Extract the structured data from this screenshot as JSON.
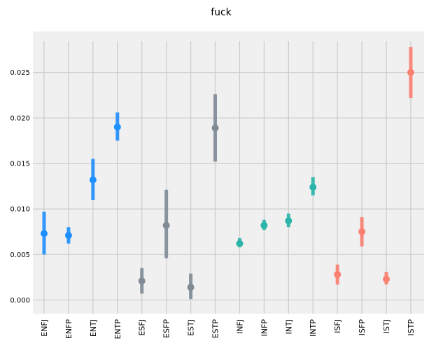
{
  "chart_data": {
    "type": "scatter",
    "title": "fuck",
    "xlabel": "",
    "ylabel": "",
    "ylim": [
      -0.0015,
      0.0295
    ],
    "grid": true,
    "legend": "none",
    "yticks": [
      "0.000",
      "0.005",
      "0.010",
      "0.015",
      "0.020",
      "0.025"
    ],
    "ytick_values": [
      0.0,
      0.005,
      0.01,
      0.015,
      0.02,
      0.025
    ],
    "categories": [
      "ENFJ",
      "ENFP",
      "ENTJ",
      "ENTP",
      "ESFJ",
      "ESFP",
      "ESTJ",
      "ESTP",
      "INFJ",
      "INFP",
      "INTJ",
      "INTP",
      "ISFJ",
      "ISFP",
      "ISTJ",
      "ISTP"
    ],
    "values": [
      0.0073,
      0.0071,
      0.0132,
      0.019,
      0.0021,
      0.0082,
      0.0014,
      0.0189,
      0.0062,
      0.0082,
      0.0087,
      0.0124,
      0.0028,
      0.0075,
      0.0023,
      0.025
    ],
    "lower": [
      0.005,
      0.0062,
      0.011,
      0.0175,
      0.0007,
      0.0046,
      0.0001,
      0.0152,
      0.0058,
      0.0077,
      0.008,
      0.0115,
      0.0017,
      0.0059,
      0.0017,
      0.0222
    ],
    "upper": [
      0.0097,
      0.008,
      0.0155,
      0.0206,
      0.0035,
      0.0121,
      0.0029,
      0.0226,
      0.0068,
      0.0088,
      0.0095,
      0.0135,
      0.0039,
      0.0091,
      0.0031,
      0.0278
    ],
    "group_colors": {
      "NF": "#2ab5a8",
      "NT": "#1e8fff",
      "SJ": "#fa8072",
      "SP": "#808b96"
    },
    "category_colors": [
      "#1e8fff",
      "#1e8fff",
      "#1e8fff",
      "#1e8fff",
      "#808b96",
      "#808b96",
      "#808b96",
      "#808b96",
      "#2ab5a8",
      "#2ab5a8",
      "#2ab5a8",
      "#2ab5a8",
      "#fa8072",
      "#fa8072",
      "#fa8072",
      "#fa8072"
    ]
  },
  "style": {
    "plot_background": "#f0f0f0",
    "grid_color": "#cbcbcb"
  }
}
